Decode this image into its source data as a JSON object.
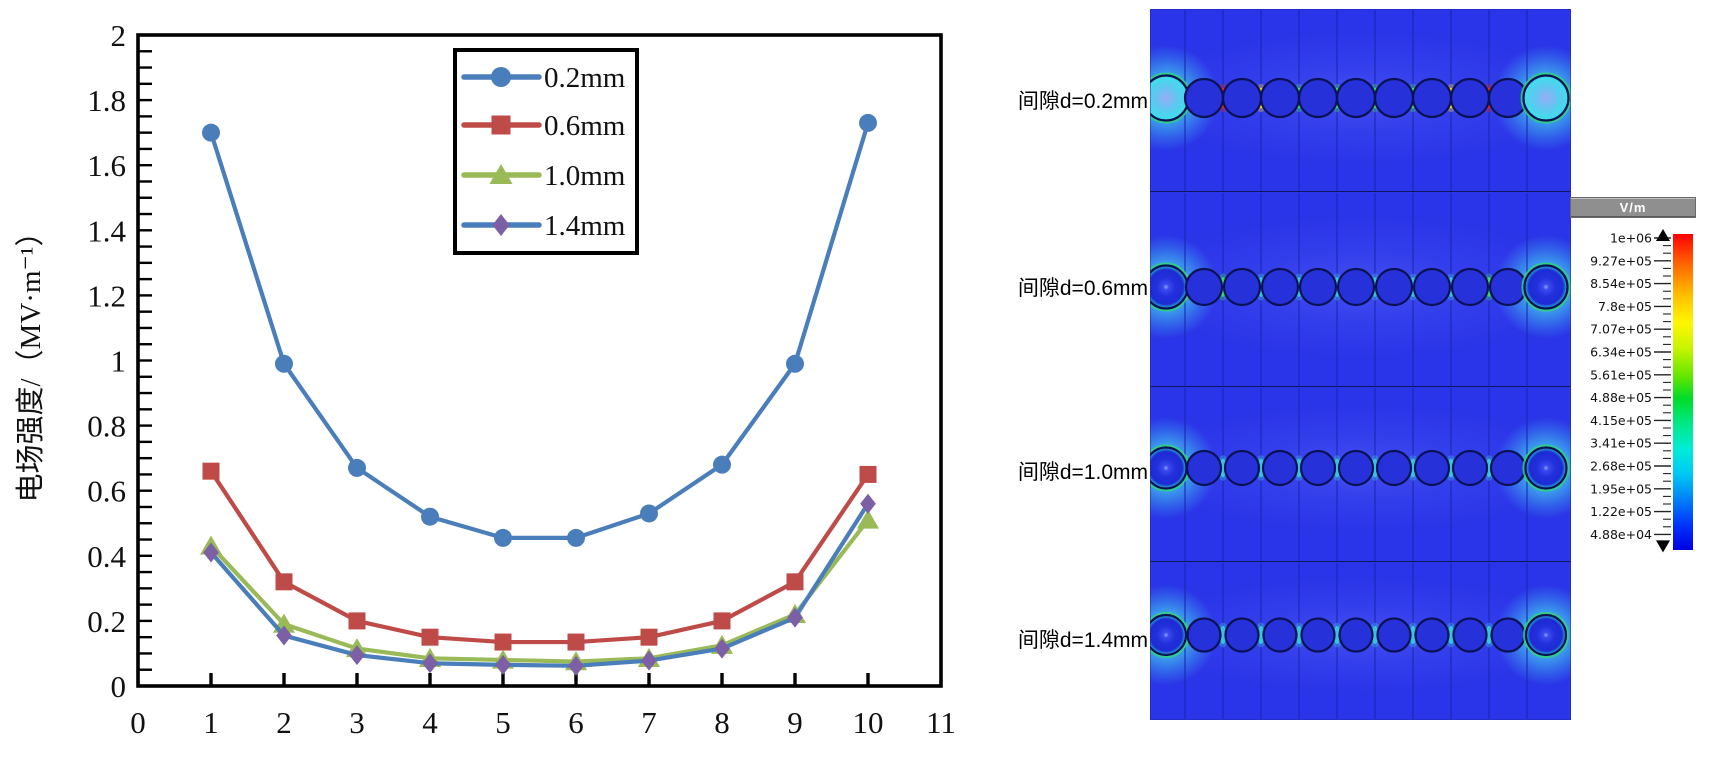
{
  "chart_data": {
    "type": "line",
    "title": "",
    "xlabel": "",
    "ylabel": "电场强度/（MV·m⁻¹）",
    "x": [
      1,
      2,
      3,
      4,
      5,
      6,
      7,
      8,
      9,
      10
    ],
    "xlim": [
      0,
      11
    ],
    "ylim": [
      0,
      2
    ],
    "x_tick_labels": [
      "0",
      "1",
      "2",
      "3",
      "4",
      "5",
      "6",
      "7",
      "8",
      "9",
      "10",
      "11"
    ],
    "y_tick_labels": [
      "0",
      "0.2",
      "0.4",
      "0.6",
      "0.8",
      "1",
      "1.2",
      "1.4",
      "1.6",
      "1.8",
      "2"
    ],
    "y_minor_tick_step": 0.05,
    "grid": false,
    "legend_position": "inside-top-center",
    "series": [
      {
        "name": "0.2mm",
        "line_color": "#4a7ebb",
        "marker": "circle",
        "marker_color": "#4a7ebb",
        "values": [
          1.7,
          0.99,
          0.67,
          0.52,
          0.455,
          0.455,
          0.53,
          0.68,
          0.99,
          1.73
        ]
      },
      {
        "name": "0.6mm",
        "line_color": "#bf4b48",
        "marker": "square",
        "marker_color": "#bf4b48",
        "values": [
          0.66,
          0.32,
          0.2,
          0.15,
          0.135,
          0.135,
          0.15,
          0.2,
          0.32,
          0.65
        ]
      },
      {
        "name": "1.0mm",
        "line_color": "#9aba58",
        "marker": "triangle",
        "marker_color": "#9aba58",
        "values": [
          0.43,
          0.19,
          0.115,
          0.085,
          0.08,
          0.075,
          0.085,
          0.125,
          0.22,
          0.51
        ]
      },
      {
        "name": "1.4mm",
        "line_color": "#4a7ebb",
        "marker": "diamond",
        "marker_color": "#7c5fa5",
        "values": [
          0.41,
          0.155,
          0.095,
          0.07,
          0.065,
          0.062,
          0.078,
          0.115,
          0.21,
          0.56
        ]
      }
    ]
  },
  "simulation": {
    "row_labels": [
      "间隙d=0.2mm",
      "间隙d=0.6mm",
      "间隙d=1.0mm",
      "间隙d=1.4mm"
    ],
    "wires_per_row": 11,
    "colorbar": {
      "unit": "V/m",
      "tick_labels": [
        "1e+06",
        "9.27e+05",
        "8.54e+05",
        "7.8e+05",
        "7.07e+05",
        "6.34e+05",
        "5.61e+05",
        "4.88e+05",
        "4.15e+05",
        "3.41e+05",
        "2.68e+05",
        "1.95e+05",
        "1.22e+05",
        "4.88e+04"
      ]
    },
    "palette": {
      "background_blue": "#2a34e8",
      "divider_blue": "#1c28b0",
      "wire_outline": "#0b1254",
      "hot_red": "#f3230b",
      "hot_yellow": "#ffd12a",
      "hot_green": "#35e065",
      "hot_cyan": "#36c9e0",
      "glow_cyan": "#46e1f0"
    }
  }
}
